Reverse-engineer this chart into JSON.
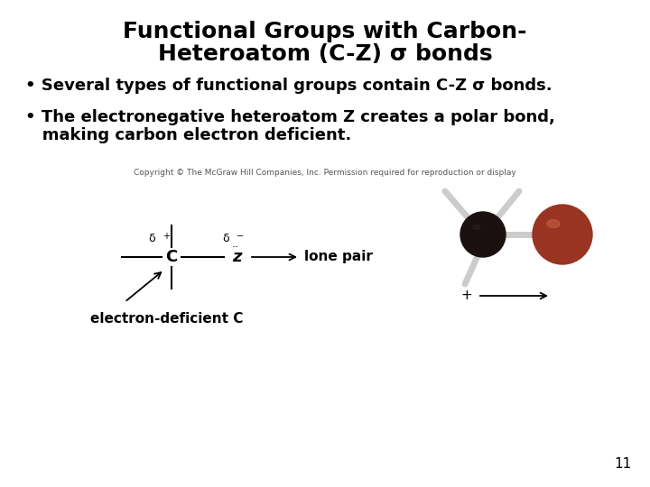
{
  "title_line1": "Functional Groups with Carbon-",
  "title_line2": "Heteroatom (C-Z) σ bonds",
  "bullet1": "• Several types of functional groups contain C-Z σ bonds.",
  "bullet2_line1": "• The electronegative heteroatom Z creates a polar bond,",
  "bullet2_line2": "   making carbon electron deficient.",
  "copyright": "Copyright © The McGraw Hill Companies, Inc. Permission required for reproduction or display",
  "label_lone_pair": "lone pair",
  "label_electron_deficient": "electron-deficient C",
  "page_number": "11",
  "bg_color": "#ffffff",
  "text_color": "#000000",
  "title_fontsize": 18,
  "bullet_fontsize": 13,
  "copyright_fontsize": 6.5,
  "annotation_fontsize": 11,
  "diagram_label_fontsize": 11,
  "page_num_fontsize": 11,
  "dark_ball_color": "#1a1010",
  "red_ball_color": "#993322",
  "stick_color": "#cccccc"
}
